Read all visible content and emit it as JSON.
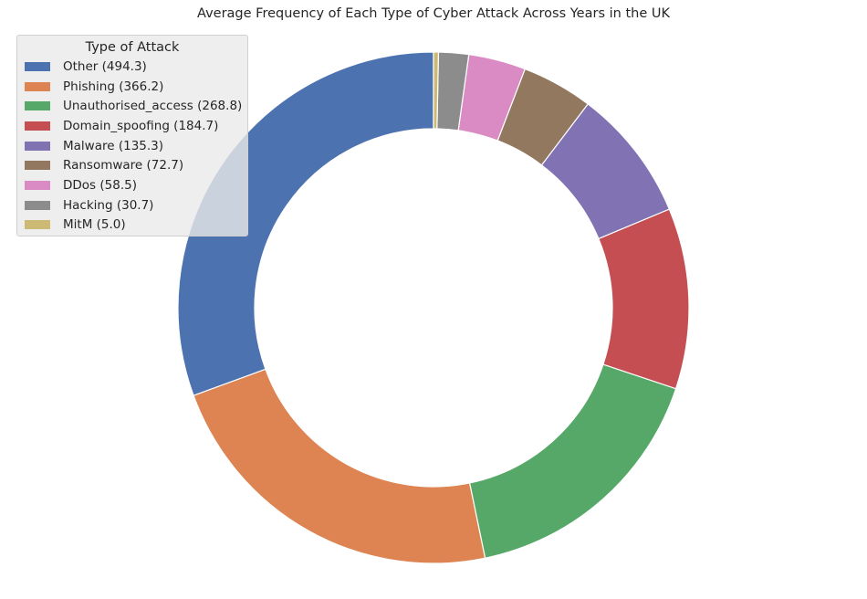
{
  "chart_data": {
    "type": "pie",
    "style": "donut",
    "title": "Average Frequency of Each Type of Cyber Attack Across Years in the UK",
    "legend": {
      "title": "Type of Attack",
      "placement": "upper-left"
    },
    "slices": [
      {
        "label": "Other",
        "legend_label": "Other (494.3)",
        "value": 494.3,
        "color": "#4c72b0"
      },
      {
        "label": "Phishing",
        "legend_label": "Phishing (366.2)",
        "value": 366.2,
        "color": "#dd8452"
      },
      {
        "label": "Unauthorised_access",
        "legend_label": "Unauthorised_access (268.8)",
        "value": 268.8,
        "color": "#55a868"
      },
      {
        "label": "Domain_spoofing",
        "legend_label": "Domain_spoofing (184.7)",
        "value": 184.7,
        "color": "#c44e52"
      },
      {
        "label": "Malware",
        "legend_label": "Malware (135.3)",
        "value": 135.3,
        "color": "#8172b3"
      },
      {
        "label": "Ransomware",
        "legend_label": "Ransomware (72.7)",
        "value": 72.7,
        "color": "#937860"
      },
      {
        "label": "DDos",
        "legend_label": "DDos (58.5)",
        "value": 58.5,
        "color": "#da8bc3"
      },
      {
        "label": "Hacking",
        "legend_label": "Hacking (30.7)",
        "value": 30.7,
        "color": "#8c8c8c"
      },
      {
        "label": "MitM",
        "legend_label": "MitM (5.0)",
        "value": 5.0,
        "color": "#ccb974"
      }
    ]
  }
}
